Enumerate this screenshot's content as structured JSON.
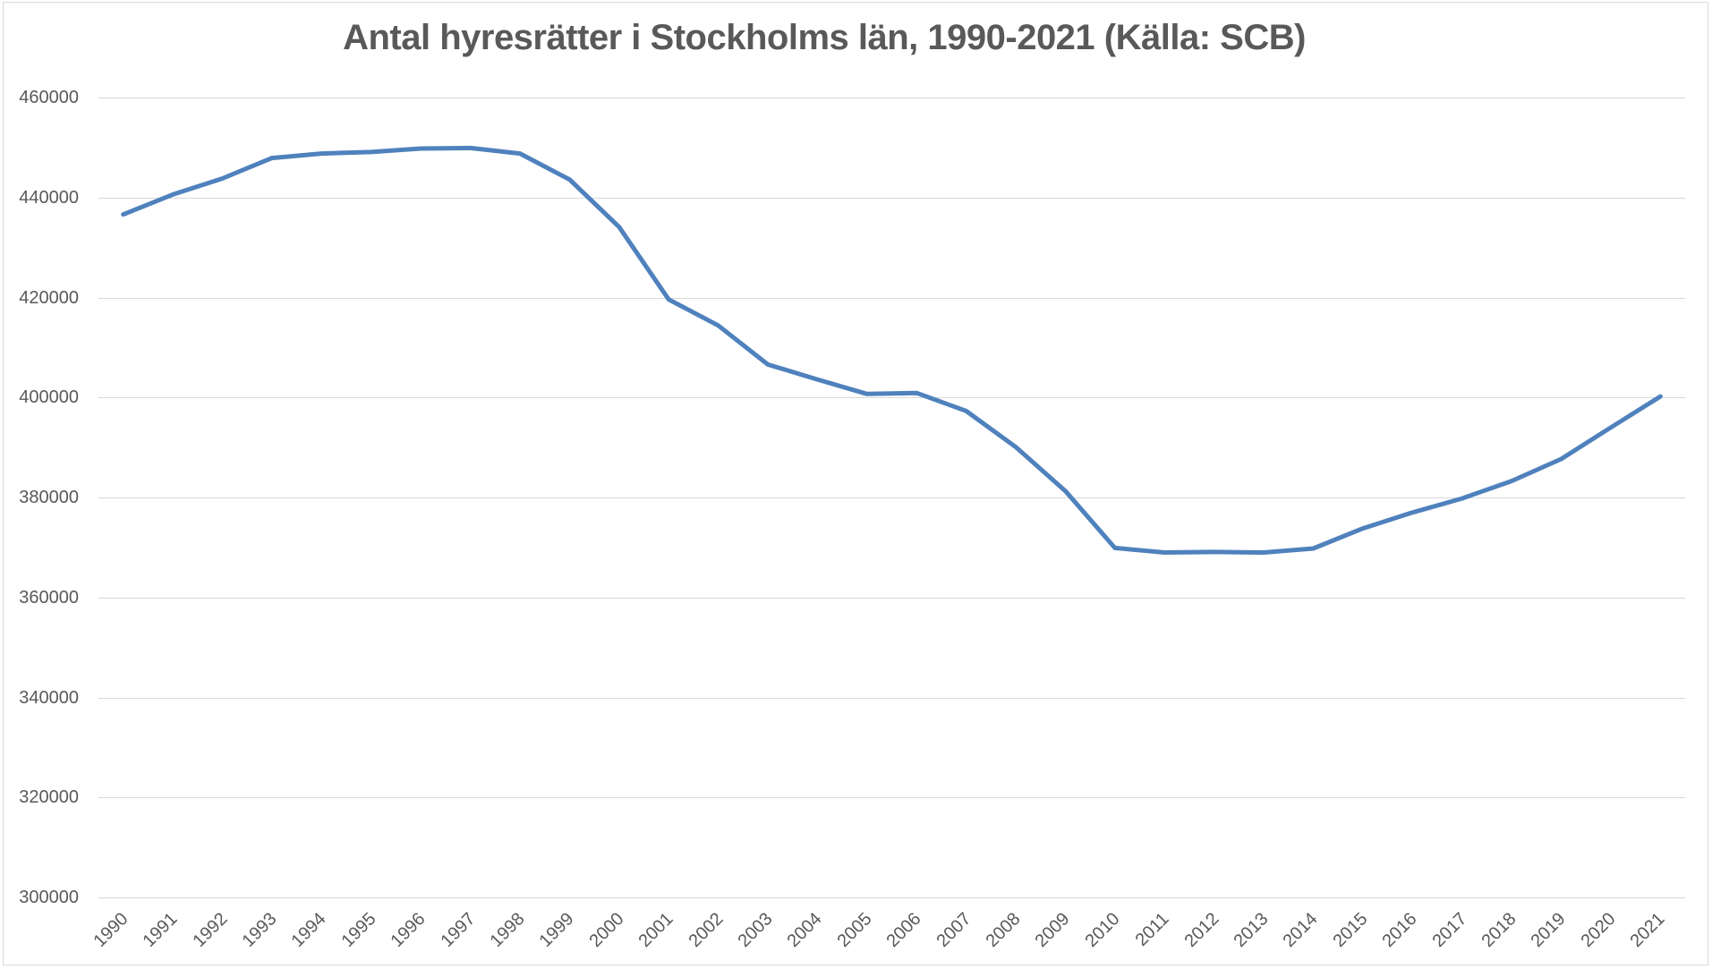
{
  "title": "Antal hyresrätter i Stockholms län, 1990-2021 (Källa: SCB)",
  "colors": {
    "line": "#4F81BD",
    "gridline": "#D9D9D9",
    "border": "#D9D9D9",
    "axis_text": "#595959",
    "title_text": "#595959",
    "background": "#FFFFFF"
  },
  "chart_data": {
    "type": "line",
    "title": "Antal hyresrätter i Stockholms län, 1990-2021 (Källa: SCB)",
    "categories": [
      "1990",
      "1991",
      "1992",
      "1993",
      "1994",
      "1995",
      "1996",
      "1997",
      "1998",
      "1999",
      "2000",
      "2001",
      "2002",
      "2003",
      "2004",
      "2005",
      "2006",
      "2007",
      "2008",
      "2009",
      "2010",
      "2011",
      "2012",
      "2013",
      "2014",
      "2015",
      "2016",
      "2017",
      "2018",
      "2019",
      "2020",
      "2021"
    ],
    "series": [
      {
        "name": "Antal hyresrätter",
        "values": [
          436600,
          440600,
          443800,
          447900,
          448800,
          449100,
          449800,
          449900,
          448800,
          443600,
          434100,
          419600,
          414400,
          406600,
          403600,
          400700,
          400900,
          397300,
          390100,
          381300,
          369900,
          369000,
          369100,
          369000,
          369800,
          373800,
          377000,
          379800,
          383300,
          387700,
          394000,
          400200
        ]
      }
    ],
    "xlabel": "",
    "ylabel": "",
    "ylim": [
      300000,
      460000
    ],
    "ytick_interval": 20000,
    "yticks": [
      300000,
      320000,
      340000,
      360000,
      380000,
      400000,
      420000,
      440000,
      460000
    ],
    "grid": "horizontal",
    "legend": "none",
    "markers": "none"
  }
}
